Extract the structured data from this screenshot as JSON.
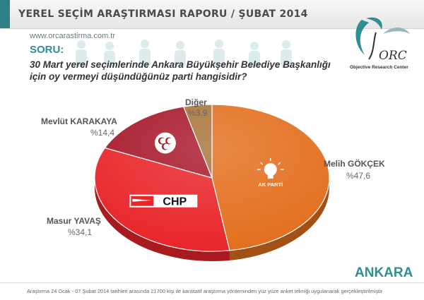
{
  "header": {
    "title": "YEREL SEÇİM ARAŞTIRMASI RAPORU / ŞUBAT 2014",
    "website": "www.orcarastirma.com.tr"
  },
  "logo": {
    "text": "ORC",
    "subtitle": "Objective Research Center"
  },
  "question": {
    "label": "SORU:",
    "text_line1": "30 Mart yerel seçimlerinde Ankara Büyükşehir Belediye Başkanlığı",
    "text_line2": "için oy vermeyi düşündüğünüz parti hangisidir?"
  },
  "chart_data": {
    "type": "pie",
    "start_angle_deg": 0,
    "direction": "clockwise",
    "slices": [
      {
        "label": "Melih GÖKÇEK",
        "value_text": "%47,6",
        "value": 47.6,
        "party": "AK PARTİ",
        "color": "#e36f1e"
      },
      {
        "label": "Masur YAVAŞ",
        "value_text": "%34,1",
        "value": 34.1,
        "party": "CHP",
        "color": "#e8262a"
      },
      {
        "label": "Mevlüt KARAKAYA",
        "value_text": "%14,4",
        "value": 14.4,
        "party": "MHP",
        "color": "#a8192b"
      },
      {
        "label": "Diğer",
        "value_text": "%3,9",
        "value": 3.9,
        "party": "",
        "color": "#a8743a"
      }
    ]
  },
  "city": "ANKARA",
  "footnote": "Araştırma 24 Ocak - 07 Şubat 2014 tarihleri arasında 21700 kişi ile kantitatif araştırma yönteminden yüz yüze anket tekniği uygulanarak gerçekleştirilmiştir"
}
